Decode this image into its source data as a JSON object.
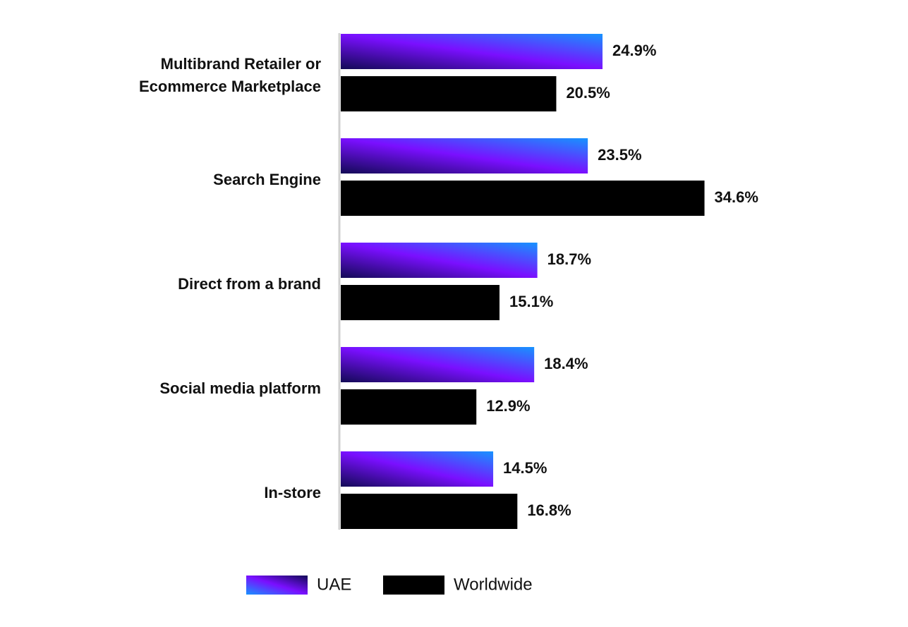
{
  "chart_data": {
    "type": "hbar",
    "categories": [
      "Multibrand Retailer or Ecommerce Marketplace",
      "Search Engine",
      "Direct from a brand",
      "Social media platform",
      "In-store"
    ],
    "series": [
      {
        "name": "UAE",
        "color": "#7a0fff",
        "gradient": [
          "#120a55",
          "#7a0fff",
          "#1793ff"
        ],
        "values": [
          24.9,
          23.5,
          18.7,
          18.4,
          14.5
        ],
        "value_labels": [
          "24.9%",
          "23.5%",
          "18.7%",
          "18.4%",
          "14.5%"
        ]
      },
      {
        "name": "Worldwide",
        "color": "#000000",
        "values": [
          20.5,
          34.6,
          15.1,
          12.9,
          16.8
        ],
        "value_labels": [
          "20.5%",
          "34.6%",
          "15.1%",
          "12.9%",
          "16.8%"
        ]
      }
    ]
  }
}
